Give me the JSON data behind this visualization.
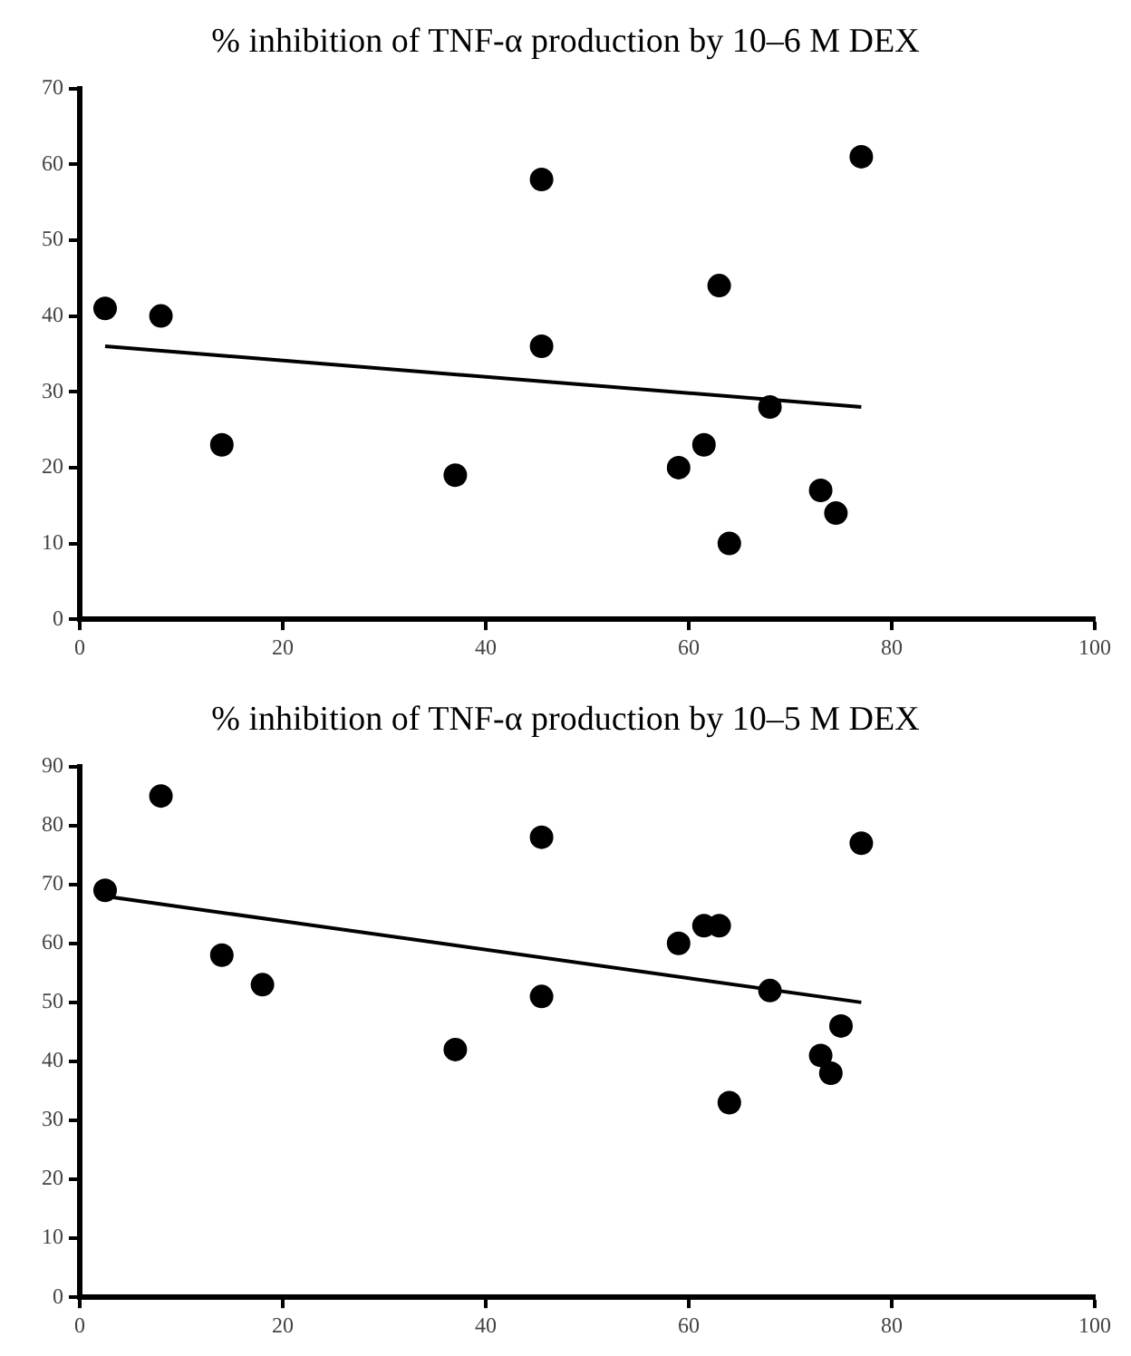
{
  "chart_data": [
    {
      "type": "scatter",
      "title": "% inhibition of TNF-α production by 10–6 M DEX",
      "xlim": [
        0,
        100
      ],
      "xticks": [
        0,
        20,
        40,
        60,
        80,
        100
      ],
      "ylim": [
        0,
        70
      ],
      "yticks": [
        0,
        10,
        20,
        30,
        40,
        50,
        60,
        70
      ],
      "grid": false,
      "legend": false,
      "marker": "circle",
      "series": [
        {
          "color": "#000000",
          "x": [
            2.5,
            8,
            14,
            37,
            45.5,
            45.5,
            59,
            61.5,
            63,
            64,
            68,
            73,
            74.5,
            77
          ],
          "values": [
            41,
            40,
            23,
            19,
            58,
            36,
            20,
            23,
            44,
            10,
            28,
            17,
            14,
            61
          ]
        },
        {
          "type": "line",
          "color": "#000000",
          "marker": "none",
          "x": [
            2.5,
            77
          ],
          "values": [
            36,
            28
          ]
        }
      ]
    },
    {
      "type": "scatter",
      "title": "% inhibition of TNF-α production by 10–5 M DEX",
      "xlim": [
        0,
        100
      ],
      "xticks": [
        0,
        20,
        40,
        60,
        80,
        100
      ],
      "ylim": [
        0,
        90
      ],
      "yticks": [
        0,
        10,
        20,
        30,
        40,
        50,
        60,
        70,
        80,
        90
      ],
      "grid": false,
      "legend": false,
      "marker": "circle",
      "series": [
        {
          "color": "#000000",
          "x": [
            2.5,
            8,
            14,
            18,
            37,
            45.5,
            45.5,
            59,
            61.5,
            63,
            64,
            68,
            73,
            74,
            75,
            77
          ],
          "values": [
            69,
            85,
            58,
            53,
            42,
            78,
            51,
            60,
            63,
            63,
            33,
            52,
            41,
            38,
            46,
            77
          ]
        },
        {
          "type": "line",
          "color": "#000000",
          "marker": "none",
          "x": [
            2.5,
            77
          ],
          "values": [
            68,
            50
          ]
        }
      ]
    }
  ]
}
